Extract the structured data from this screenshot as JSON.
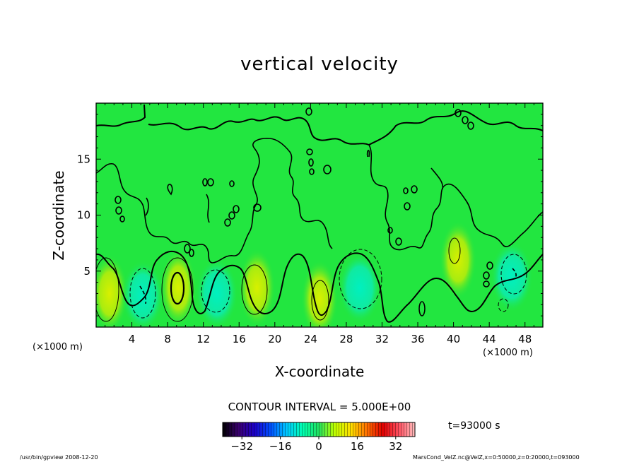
{
  "chart_data": {
    "type": "contour",
    "title": "vertical velocity",
    "xlabel": "X-coordinate",
    "ylabel": "Z-coordinate",
    "x_unit_label": "(×1000 m)",
    "xlim": [
      0,
      50
    ],
    "ylim": [
      0,
      20
    ],
    "x_ticks": [
      4,
      8,
      12,
      16,
      20,
      24,
      28,
      32,
      36,
      40,
      44,
      48
    ],
    "y_ticks": [
      5,
      10,
      15
    ],
    "contour_interval_label": "CONTOUR INTERVAL = 5.000E+00",
    "time_label": "t=93000 s",
    "colorbar": {
      "ticks": [
        -32,
        -16,
        0,
        16,
        32
      ],
      "range": [
        -40,
        40
      ],
      "colormap": [
        "#000000",
        "#3b0070",
        "#1b00c8",
        "#0050ff",
        "#00c8ff",
        "#00ffb0",
        "#20e060",
        "#c0ff00",
        "#ffe000",
        "#ff7000",
        "#e00000",
        "#ff5060",
        "#ffc0c0"
      ]
    },
    "background_color": "#22e640",
    "features": [
      {
        "x": 9.2,
        "z": 3.5,
        "value": 15,
        "kind": "updraft"
      },
      {
        "x": 18,
        "z": 3.5,
        "value": 10,
        "kind": "updraft"
      },
      {
        "x": 25,
        "z": 2.5,
        "value": 10,
        "kind": "updraft"
      },
      {
        "x": 1.5,
        "z": 3,
        "value": 8,
        "kind": "updraft"
      },
      {
        "x": 40.5,
        "z": 6,
        "value": 6,
        "kind": "updraft"
      },
      {
        "x": 5.2,
        "z": 2.8,
        "value": -10,
        "kind": "downdraft"
      },
      {
        "x": 13.5,
        "z": 3,
        "value": -8,
        "kind": "downdraft"
      },
      {
        "x": 29.5,
        "z": 3.5,
        "value": -10,
        "kind": "downdraft"
      },
      {
        "x": 46.5,
        "z": 4.5,
        "value": -10,
        "kind": "downdraft"
      }
    ]
  },
  "footer": {
    "left": "/usr/bin/gpview  2008-12-20",
    "right": "MarsCond_VelZ.nc@VelZ,x=0:50000,z=0:20000,t=093000"
  }
}
